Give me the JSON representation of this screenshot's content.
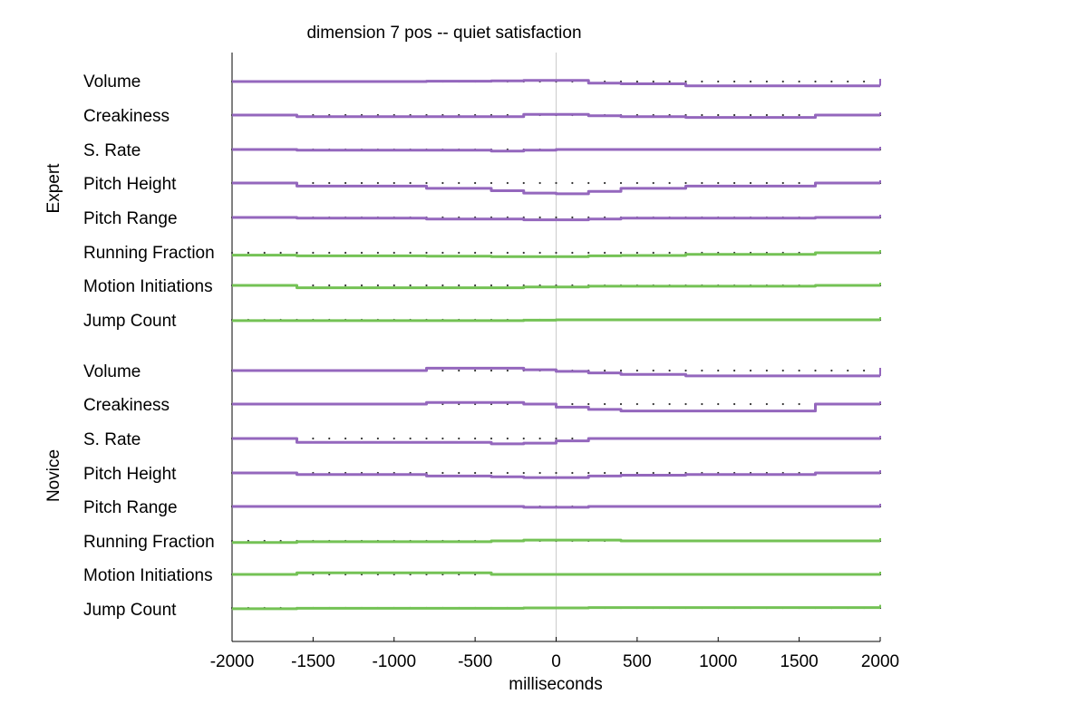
{
  "chart_data": {
    "type": "line",
    "title": "dimension 7 pos -- quiet satisfaction",
    "xlabel": "milliseconds",
    "xlim": [
      -2000,
      2000
    ],
    "xticks": [
      -2000,
      -1500,
      -1000,
      -500,
      0,
      500,
      1000,
      1500,
      2000
    ],
    "zero_line": 0,
    "colors": {
      "prosody": "#9467bd",
      "motion": "#74c255",
      "dots": "#333333"
    },
    "bin_edges": [
      -2000,
      -1600,
      -800,
      -400,
      -200,
      0,
      200,
      400,
      800,
      1600,
      2000
    ],
    "groups": [
      {
        "name": "Expert",
        "rows": [
          {
            "label": "Volume",
            "kind": "prosody",
            "values": [
              0,
              0,
              0.5,
              1,
              1.5,
              1.5,
              -2,
              -3,
              -5.5,
              -5.5
            ]
          },
          {
            "label": "Creakiness",
            "kind": "prosody",
            "values": [
              0,
              -2,
              -2,
              -2,
              1,
              1,
              -1,
              -2,
              -3,
              0
            ]
          },
          {
            "label": "S. Rate",
            "kind": "prosody",
            "values": [
              0,
              -1,
              -1,
              -2,
              -1,
              0,
              0,
              0,
              0,
              0
            ]
          },
          {
            "label": "Pitch Height",
            "kind": "prosody",
            "values": [
              0,
              -4,
              -7,
              -10,
              -13,
              -14,
              -11,
              -7,
              -4,
              0
            ]
          },
          {
            "label": "Pitch Range",
            "kind": "prosody",
            "values": [
              0,
              -1,
              -2,
              -2,
              -3,
              -3,
              -2,
              -1,
              -1,
              0
            ]
          },
          {
            "label": "Running Fraction",
            "kind": "motion",
            "values": [
              -3,
              -4,
              -4.5,
              -5,
              -5,
              -5,
              -4,
              -3.5,
              -2,
              0
            ]
          },
          {
            "label": "Motion Initiations",
            "kind": "motion",
            "values": [
              0,
              -3,
              -3,
              -3,
              -2,
              -2,
              -1,
              -1,
              -1,
              0
            ]
          },
          {
            "label": "Jump Count",
            "kind": "motion",
            "values": [
              -1,
              -1,
              -1,
              -1,
              -0.5,
              0,
              0,
              0,
              0,
              0
            ]
          }
        ]
      },
      {
        "name": "Novice",
        "rows": [
          {
            "label": "Volume",
            "kind": "prosody",
            "values": [
              0,
              0,
              3,
              3,
              1,
              -1,
              -3,
              -5,
              -7,
              -7
            ]
          },
          {
            "label": "Creakiness",
            "kind": "prosody",
            "values": [
              0,
              0,
              2,
              2,
              0,
              -4,
              -7,
              -9,
              -9,
              0
            ]
          },
          {
            "label": "S. Rate",
            "kind": "prosody",
            "values": [
              0,
              -5,
              -5,
              -7,
              -6,
              -3,
              0,
              0,
              0,
              0
            ]
          },
          {
            "label": "Pitch Height",
            "kind": "prosody",
            "values": [
              0,
              -2,
              -4,
              -5,
              -6,
              -6,
              -4,
              -3,
              -2,
              0
            ]
          },
          {
            "label": "Pitch Range",
            "kind": "prosody",
            "values": [
              0,
              0,
              0,
              0,
              -1,
              -1,
              0,
              0,
              0,
              0
            ]
          },
          {
            "label": "Running Fraction",
            "kind": "motion",
            "values": [
              -2,
              -1,
              -1,
              0,
              1,
              1,
              1,
              0,
              0,
              0
            ]
          },
          {
            "label": "Motion Initiations",
            "kind": "motion",
            "values": [
              0,
              2,
              2,
              0,
              0,
              0,
              0,
              0,
              0,
              0
            ]
          },
          {
            "label": "Jump Count",
            "kind": "motion",
            "values": [
              -1,
              -0.5,
              -0.5,
              -0.5,
              0,
              0,
              0.5,
              0.5,
              0.5,
              0.5
            ]
          }
        ]
      }
    ]
  }
}
